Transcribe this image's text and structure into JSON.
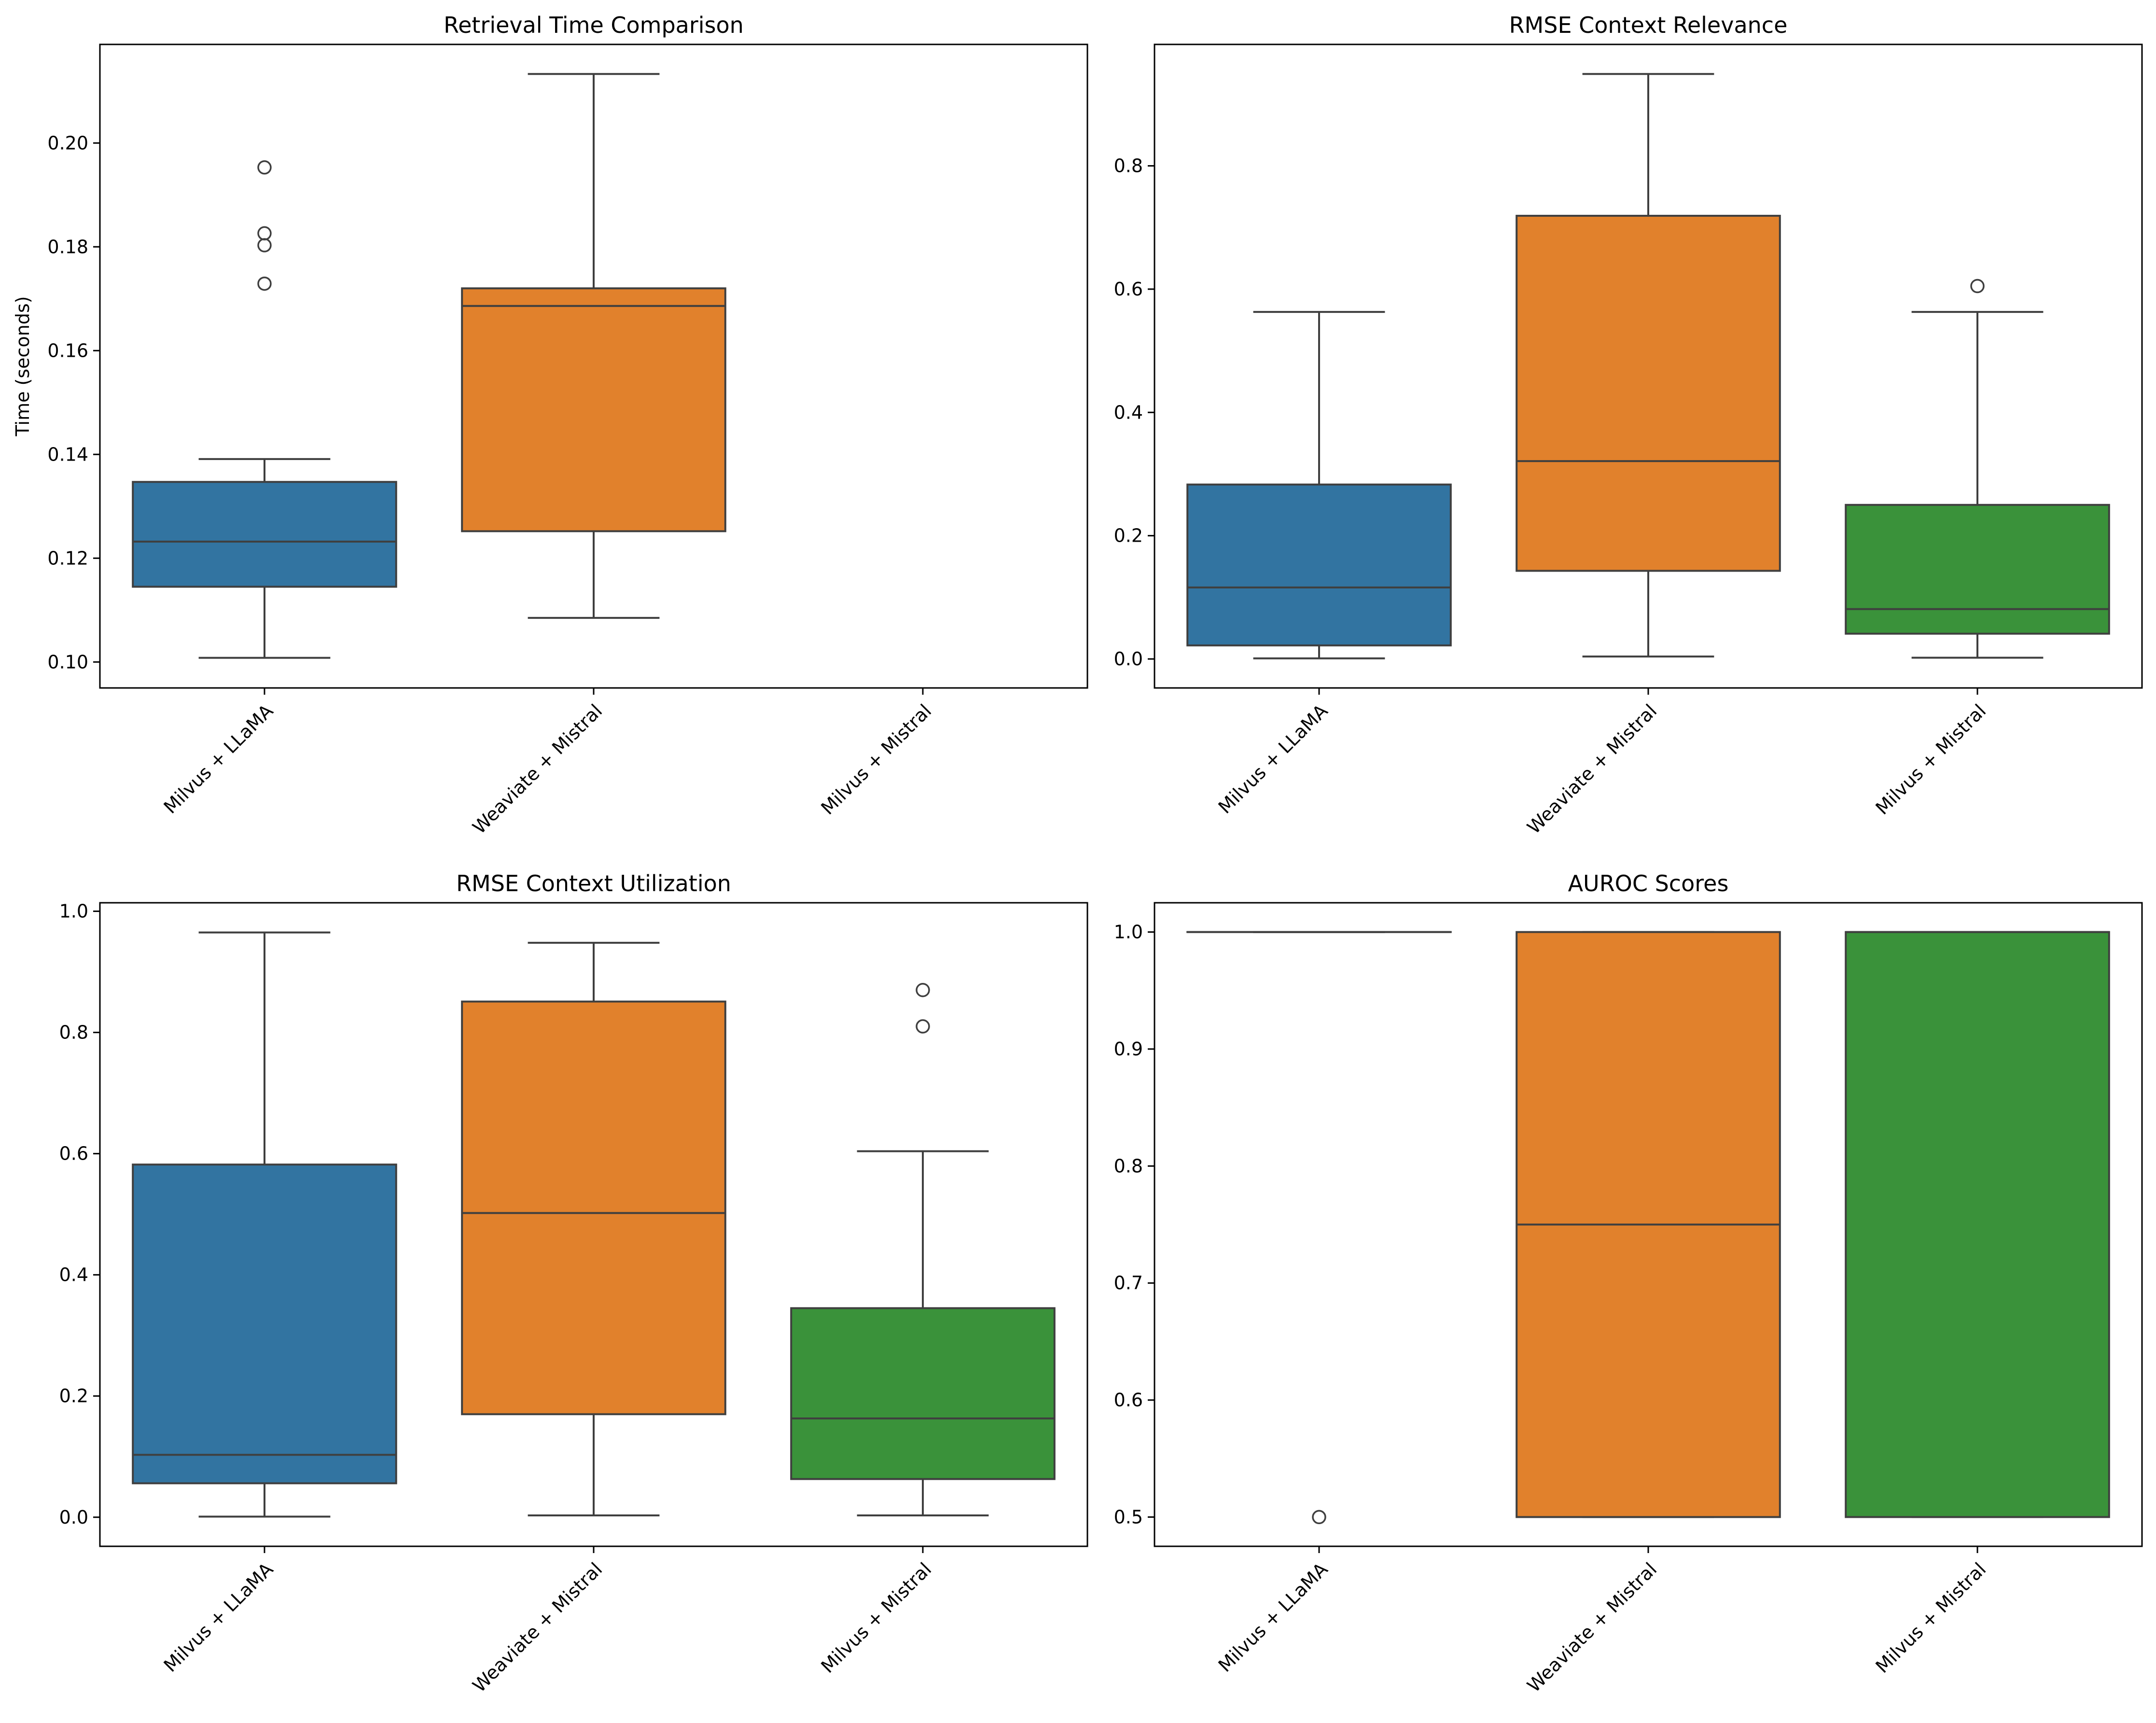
{
  "chart_data": [
    {
      "type": "box",
      "title": "Retrieval Time Comparison",
      "xlabel": "",
      "ylabel": "Time (seconds)",
      "ylim": [
        0.095,
        0.219
      ],
      "yticks": [
        0.1,
        0.12,
        0.14,
        0.16,
        0.18,
        0.2
      ],
      "categories": [
        "Milvus + LLaMA",
        "Weaviate + Mistral",
        "Milvus + Mistral"
      ],
      "colors": [
        "#3274a1",
        "#e1812c",
        "#3a923a"
      ],
      "boxes": [
        {
          "name": "Milvus + LLaMA",
          "q1": 0.1145,
          "median": 0.1232,
          "q3": 0.1347,
          "whisker_low": 0.1008,
          "whisker_high": 0.1391,
          "outliers": [
            0.1953,
            0.1826,
            0.1803,
            0.1729
          ]
        },
        {
          "name": "Weaviate + Mistral",
          "q1": 0.1252,
          "median": 0.1686,
          "q3": 0.172,
          "whisker_low": 0.1085,
          "whisker_high": 0.2133,
          "outliers": []
        },
        null
      ]
    },
    {
      "type": "box",
      "title": "RMSE Context Relevance",
      "xlabel": "",
      "ylabel": "",
      "ylim": [
        -0.047,
        0.997
      ],
      "yticks": [
        0.0,
        0.2,
        0.4,
        0.6,
        0.8
      ],
      "categories": [
        "Milvus + LLaMA",
        "Weaviate + Mistral",
        "Milvus + Mistral"
      ],
      "colors": [
        "#3274a1",
        "#e1812c",
        "#3a923a"
      ],
      "boxes": [
        {
          "name": "Milvus + LLaMA",
          "q1": 0.022,
          "median": 0.116,
          "q3": 0.283,
          "whisker_low": 0.001,
          "whisker_high": 0.563,
          "outliers": []
        },
        {
          "name": "Weaviate + Mistral",
          "q1": 0.143,
          "median": 0.321,
          "q3": 0.719,
          "whisker_low": 0.004,
          "whisker_high": 0.949,
          "outliers": []
        },
        {
          "name": "Milvus + Mistral",
          "q1": 0.041,
          "median": 0.081,
          "q3": 0.25,
          "whisker_low": 0.002,
          "whisker_high": 0.563,
          "outliers": [
            0.605
          ]
        }
      ]
    },
    {
      "type": "box",
      "title": "RMSE Context Utilization",
      "xlabel": "",
      "ylabel": "",
      "ylim": [
        -0.048,
        1.014
      ],
      "yticks": [
        0.0,
        0.2,
        0.4,
        0.6,
        0.8,
        1.0
      ],
      "categories": [
        "Milvus + LLaMA",
        "Weaviate + Mistral",
        "Milvus + Mistral"
      ],
      "colors": [
        "#3274a1",
        "#e1812c",
        "#3a923a"
      ],
      "boxes": [
        {
          "name": "Milvus + LLaMA",
          "q1": 0.056,
          "median": 0.103,
          "q3": 0.582,
          "whisker_low": 0.001,
          "whisker_high": 0.965,
          "outliers": []
        },
        {
          "name": "Weaviate + Mistral",
          "q1": 0.17,
          "median": 0.502,
          "q3": 0.851,
          "whisker_low": 0.003,
          "whisker_high": 0.948,
          "outliers": []
        },
        {
          "name": "Milvus + Mistral",
          "q1": 0.063,
          "median": 0.163,
          "q3": 0.345,
          "whisker_low": 0.003,
          "whisker_high": 0.604,
          "outliers": [
            0.87,
            0.81
          ]
        }
      ]
    },
    {
      "type": "box",
      "title": "AUROC Scores",
      "xlabel": "",
      "ylabel": "",
      "ylim": [
        0.475,
        1.025
      ],
      "yticks": [
        0.5,
        0.6,
        0.7,
        0.8,
        0.9,
        1.0
      ],
      "categories": [
        "Milvus + LLaMA",
        "Weaviate + Mistral",
        "Milvus + Mistral"
      ],
      "colors": [
        "#3274a1",
        "#e1812c",
        "#3a923a"
      ],
      "boxes": [
        {
          "name": "Milvus + LLaMA",
          "q1": 1.0,
          "median": 1.0,
          "q3": 1.0,
          "whisker_low": 1.0,
          "whisker_high": 1.0,
          "outliers": [
            0.5
          ]
        },
        {
          "name": "Weaviate + Mistral",
          "q1": 0.5,
          "median": 0.75,
          "q3": 1.0,
          "whisker_low": 0.5,
          "whisker_high": 1.0,
          "outliers": []
        },
        {
          "name": "Milvus + Mistral",
          "q1": 0.5,
          "median": 1.0,
          "q3": 1.0,
          "whisker_low": 0.5,
          "whisker_high": 1.0,
          "outliers": []
        }
      ]
    }
  ]
}
